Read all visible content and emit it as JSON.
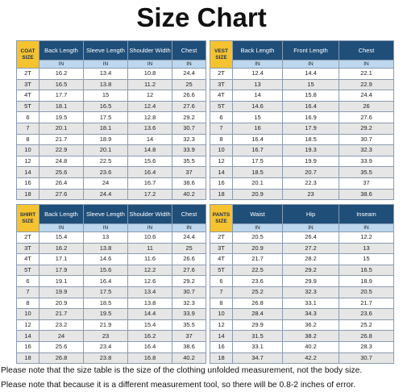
{
  "title": "Size Chart",
  "tables": [
    {
      "size_label": "COAT SIZE",
      "columns": [
        "Back Length",
        "Sleeve Length",
        "Shoulder Width",
        "Chest"
      ],
      "units": [
        "IN",
        "IN",
        "IN",
        "IN"
      ],
      "rows": [
        [
          "2T",
          16.2,
          13.4,
          10.8,
          24.4
        ],
        [
          "3T",
          16.5,
          13.8,
          11.2,
          25
        ],
        [
          "4T",
          17.7,
          15,
          12,
          26.6
        ],
        [
          "5T",
          18.1,
          16.5,
          12.4,
          27.6
        ],
        [
          "6",
          19.5,
          17.5,
          12.8,
          29.2
        ],
        [
          "7",
          20.1,
          18.1,
          13.6,
          30.7
        ],
        [
          "8",
          21.7,
          18.9,
          14,
          32.3
        ],
        [
          "10",
          22.9,
          20.1,
          14.8,
          33.9
        ],
        [
          "12",
          24.8,
          22.5,
          15.6,
          35.5
        ],
        [
          "14",
          25.6,
          23.6,
          16.4,
          37
        ],
        [
          "16",
          26.4,
          24,
          16.7,
          38.6
        ],
        [
          "18",
          27.6,
          24.4,
          17.2,
          40.2
        ]
      ]
    },
    {
      "size_label": "VEST SIZE",
      "columns": [
        "Back Length",
        "Front Length",
        "Chest"
      ],
      "units": [
        "IN",
        "IN",
        "IN"
      ],
      "rows": [
        [
          "2T",
          12.4,
          14.4,
          22.1
        ],
        [
          "3T",
          13,
          15,
          22.9
        ],
        [
          "4T",
          14,
          15.8,
          24.4
        ],
        [
          "5T",
          14.6,
          16.4,
          26
        ],
        [
          "6",
          15,
          16.9,
          27.6
        ],
        [
          "7",
          16,
          17.9,
          29.2
        ],
        [
          "8",
          16.4,
          18.5,
          30.7
        ],
        [
          "10",
          16.7,
          19.3,
          32.3
        ],
        [
          "12",
          17.5,
          19.9,
          33.9
        ],
        [
          "14",
          18.5,
          20.7,
          35.5
        ],
        [
          "16",
          20.1,
          22.3,
          37
        ],
        [
          "18",
          20.9,
          23,
          38.6
        ]
      ]
    },
    {
      "size_label": "SHIRT SIZE",
      "columns": [
        "Back Length",
        "Sleeve Length",
        "Shoulder Width",
        "Chest"
      ],
      "units": [
        "IN",
        "IN",
        "IN",
        "IN"
      ],
      "rows": [
        [
          "2T",
          15.4,
          13,
          10.6,
          24.4
        ],
        [
          "3T",
          16.2,
          13.8,
          11,
          25
        ],
        [
          "4T",
          17.1,
          14.6,
          11.6,
          26.6
        ],
        [
          "5T",
          17.9,
          15.6,
          12.2,
          27.6
        ],
        [
          "6",
          19.1,
          16.4,
          12.6,
          29.2
        ],
        [
          "7",
          19.9,
          17.5,
          13.4,
          30.7
        ],
        [
          "8",
          20.9,
          18.5,
          13.8,
          32.3
        ],
        [
          "10",
          21.7,
          19.5,
          14.4,
          33.9
        ],
        [
          "12",
          23.2,
          21.9,
          15.4,
          35.5
        ],
        [
          "14",
          24,
          23,
          16.2,
          37
        ],
        [
          "16",
          25.6,
          23.4,
          16.4,
          38.6
        ],
        [
          "18",
          26.8,
          23.8,
          16.8,
          40.2
        ]
      ]
    },
    {
      "size_label": "PANTS SIZE",
      "columns": [
        "Waist",
        "Hip",
        "Inseam"
      ],
      "units": [
        "IN",
        "IN",
        "IN"
      ],
      "rows": [
        [
          "2T",
          20.5,
          26.4,
          12.2
        ],
        [
          "3T",
          20.9,
          27.2,
          13
        ],
        [
          "4T",
          21.7,
          28.2,
          15
        ],
        [
          "5T",
          22.5,
          29.2,
          16.5
        ],
        [
          "6",
          23.6,
          29.9,
          18.9
        ],
        [
          "7",
          25.2,
          32.3,
          20.5
        ],
        [
          "8",
          26.8,
          33.1,
          21.7
        ],
        [
          "10",
          28.4,
          34.3,
          23.6
        ],
        [
          "12",
          29.9,
          36.2,
          25.2
        ],
        [
          "14",
          31.5,
          38.2,
          26.8
        ],
        [
          "16",
          33.1,
          40.2,
          28.3
        ],
        [
          "18",
          34.7,
          42.2,
          30.7
        ]
      ]
    }
  ],
  "notes": [
    "Please note that the size table is the size of the clothing unfolded measurement, not the body size.",
    "Please note that because it is a different measurement tool, so there will be 0.8-2 inches of error."
  ]
}
